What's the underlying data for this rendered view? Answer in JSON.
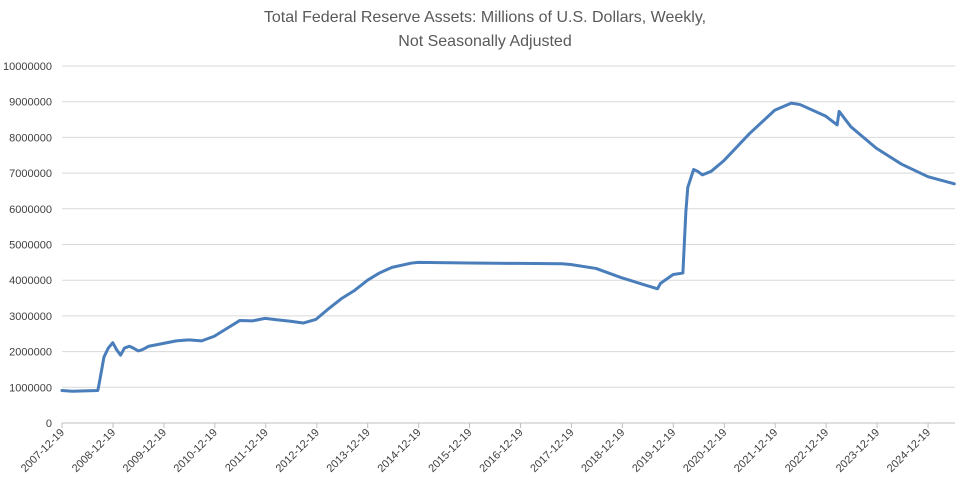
{
  "chart_data": {
    "type": "line",
    "title": "Total Federal Reserve Assets: Millions of U.S. Dollars, Weekly,",
    "subtitle": "Not Seasonally Adjusted",
    "xlabel": "",
    "ylabel": "",
    "ylim": [
      0,
      10000000
    ],
    "yticks": [
      "0",
      "1000000",
      "2000000",
      "3000000",
      "4000000",
      "5000000",
      "6000000",
      "7000000",
      "8000000",
      "9000000",
      "10000000"
    ],
    "xticks": [
      "2007-12-19",
      "2008-12-19",
      "2009-12-19",
      "2010-12-19",
      "2011-12-19",
      "2012-12-19",
      "2013-12-19",
      "2014-12-19",
      "2015-12-19",
      "2016-12-19",
      "2017-12-19",
      "2018-12-19",
      "2019-12-19",
      "2020-12-19",
      "2021-12-19",
      "2022-12-19",
      "2023-12-19",
      "2024-12-19"
    ],
    "xlim": [
      "2007-12-19",
      "2025-06-30"
    ],
    "grid": true,
    "legend": "none",
    "line_color": "#4a7ebb",
    "series": [
      {
        "x": [
          "2007-12-19",
          "2008-03-01",
          "2008-06-01",
          "2008-09-01",
          "2008-09-15",
          "2008-10-15",
          "2008-11-15",
          "2008-12-17",
          "2009-01-14",
          "2009-02-11",
          "2009-03-11",
          "2009-04-15",
          "2009-05-13",
          "2009-06-17",
          "2009-07-15",
          "2009-09-01",
          "2009-12-16",
          "2010-03-17",
          "2010-06-16",
          "2010-09-15",
          "2010-12-15",
          "2011-03-16",
          "2011-06-15",
          "2011-09-14",
          "2011-12-14",
          "2012-03-14",
          "2012-06-13",
          "2012-09-12",
          "2012-12-12",
          "2013-03-13",
          "2013-06-12",
          "2013-09-11",
          "2013-12-18",
          "2014-03-12",
          "2014-06-11",
          "2014-10-29",
          "2014-12-17",
          "2015-12-16",
          "2016-12-14",
          "2017-10-11",
          "2017-12-13",
          "2018-06-13",
          "2018-12-12",
          "2019-06-12",
          "2019-08-28",
          "2019-09-18",
          "2019-12-18",
          "2020-02-26",
          "2020-03-18",
          "2020-04-01",
          "2020-05-13",
          "2020-06-10",
          "2020-07-15",
          "2020-09-16",
          "2020-12-16",
          "2021-06-16",
          "2021-12-15",
          "2022-04-13",
          "2022-06-15",
          "2022-12-14",
          "2023-03-08",
          "2023-03-22",
          "2023-06-14",
          "2023-12-13",
          "2024-06-12",
          "2024-12-18",
          "2025-06-25"
        ],
        "y": [
          910000,
          890000,
          900000,
          910000,
          1200000,
          1850000,
          2100000,
          2250000,
          2050000,
          1900000,
          2100000,
          2150000,
          2100000,
          2020000,
          2050000,
          2150000,
          2230000,
          2300000,
          2330000,
          2300000,
          2430000,
          2650000,
          2870000,
          2860000,
          2930000,
          2890000,
          2850000,
          2800000,
          2900000,
          3200000,
          3480000,
          3700000,
          4000000,
          4200000,
          4360000,
          4480000,
          4500000,
          4480000,
          4470000,
          4460000,
          4440000,
          4330000,
          4070000,
          3850000,
          3760000,
          3910000,
          4160000,
          4200000,
          5900000,
          6600000,
          7100000,
          7050000,
          6950000,
          7050000,
          7350000,
          8100000,
          8760000,
          8960000,
          8920000,
          8600000,
          8350000,
          8730000,
          8300000,
          7700000,
          7250000,
          6900000,
          6700000
        ]
      }
    ]
  }
}
